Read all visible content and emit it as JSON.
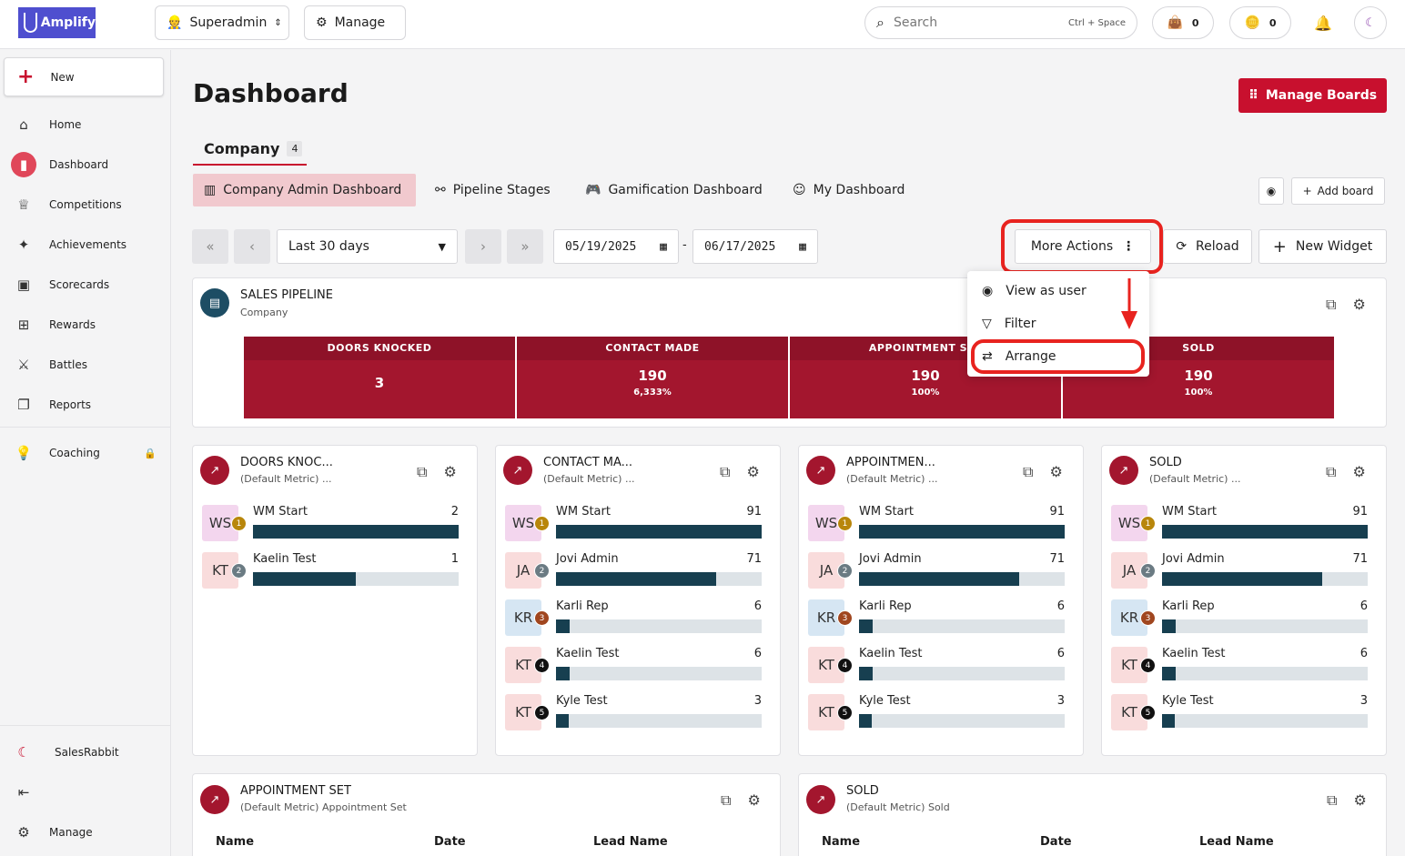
{
  "app": {
    "logo": "Amplify",
    "role": "Superadmin",
    "manage": "Manage",
    "search_placeholder": "Search",
    "search_kbd": "Ctrl + Space",
    "counter1": "0",
    "counter2": "0"
  },
  "sidebar": {
    "new": "New",
    "items": [
      "Home",
      "Dashboard",
      "Competitions",
      "Achievements",
      "Scorecards",
      "Rewards",
      "Battles",
      "Reports",
      "Coaching"
    ],
    "org": "SalesRabbit",
    "bottom": "Manage"
  },
  "page": {
    "title": "Dashboard",
    "manage_boards": "Manage Boards",
    "company_tab": "Company",
    "company_count": "4",
    "subtabs": [
      "Company Admin Dashboard",
      "Pipeline Stages",
      "Gamification Dashboard",
      "My Dashboard"
    ],
    "add_board": "Add board"
  },
  "toolbar": {
    "range": "Last 30 days",
    "start": "05/19/2025",
    "dash": "-",
    "end": "06/17/2025",
    "more_actions": "More Actions",
    "reload": "Reload",
    "new_widget": "New Widget"
  },
  "menu": {
    "items": [
      "View as user",
      "Filter",
      "Arrange"
    ]
  },
  "pipeline": {
    "title": "SALES PIPELINE",
    "sub": "Company",
    "stages": [
      {
        "name": "DOORS KNOCKED",
        "value": "3",
        "pct": ""
      },
      {
        "name": "CONTACT MADE",
        "value": "190",
        "pct": "6,333%"
      },
      {
        "name": "APPOINTMENT SET",
        "value": "190",
        "pct": "100%"
      },
      {
        "name": "SOLD",
        "value": "190",
        "pct": "100%"
      }
    ]
  },
  "widgets": [
    {
      "title": "DOORS KNOC...",
      "sub": "(Default Metric) ...",
      "rows": [
        {
          "i": "WS",
          "n": "WM Start",
          "v": 2,
          "f": 1
        },
        {
          "i": "KT",
          "n": "Kaelin Test",
          "v": 1,
          "f": 0.5
        }
      ]
    },
    {
      "title": "CONTACT MA...",
      "sub": "(Default Metric) ...",
      "rows": [
        {
          "i": "WS",
          "n": "WM Start",
          "v": 91,
          "f": 1
        },
        {
          "i": "JA",
          "n": "Jovi Admin",
          "v": 71,
          "f": 0.78
        },
        {
          "i": "KR",
          "n": "Karli Rep",
          "v": 6,
          "f": 0.066
        },
        {
          "i": "KT",
          "n": "Kaelin Test",
          "v": 6,
          "f": 0.066
        },
        {
          "i": "KT",
          "n": "Kyle Test",
          "v": 3,
          "f": 0.033
        }
      ]
    },
    {
      "title": "APPOINTMEN...",
      "sub": "(Default Metric) ...",
      "rows": [
        {
          "i": "WS",
          "n": "WM Start",
          "v": 91,
          "f": 1
        },
        {
          "i": "JA",
          "n": "Jovi Admin",
          "v": 71,
          "f": 0.78
        },
        {
          "i": "KR",
          "n": "Karli Rep",
          "v": 6,
          "f": 0.066
        },
        {
          "i": "KT",
          "n": "Kaelin Test",
          "v": 6,
          "f": 0.066
        },
        {
          "i": "KT",
          "n": "Kyle Test",
          "v": 3,
          "f": 0.033
        }
      ]
    },
    {
      "title": "SOLD",
      "sub": "(Default Metric) ...",
      "rows": [
        {
          "i": "WS",
          "n": "WM Start",
          "v": 91,
          "f": 1
        },
        {
          "i": "JA",
          "n": "Jovi Admin",
          "v": 71,
          "f": 0.78
        },
        {
          "i": "KR",
          "n": "Karli Rep",
          "v": 6,
          "f": 0.066
        },
        {
          "i": "KT",
          "n": "Kaelin Test",
          "v": 6,
          "f": 0.066
        },
        {
          "i": "KT",
          "n": "Kyle Test",
          "v": 3,
          "f": 0.033
        }
      ]
    }
  ],
  "bottom_widgets": [
    {
      "title": "APPOINTMENT SET",
      "sub": "(Default Metric) Appointment Set",
      "cols": [
        "Name",
        "Date",
        "Lead Name"
      ]
    },
    {
      "title": "SOLD",
      "sub": "(Default Metric) Sold",
      "cols": [
        "Name",
        "Date",
        "Lead Name"
      ]
    }
  ],
  "colors": {
    "accent": "#c8102e",
    "bar": "#173f50",
    "rank1": "#b8860b",
    "rank2": "#6b7b83",
    "rank3": "#a0461f",
    "rank4": "#111111",
    "rank5": "#111111"
  }
}
